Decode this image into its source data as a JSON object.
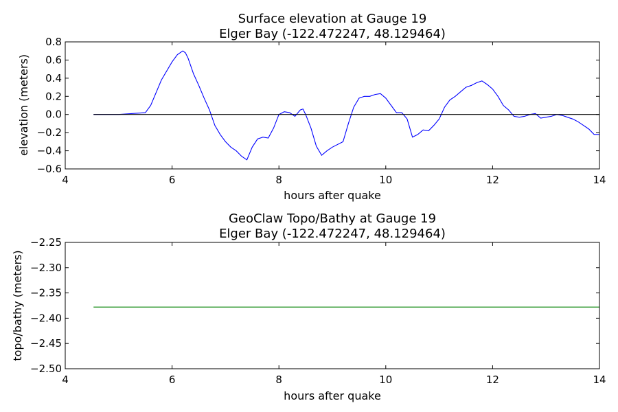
{
  "chart_data": [
    {
      "type": "line",
      "title": "Surface elevation at Gauge 19",
      "subtitle": "Elger Bay  (-122.472247, 48.129464)",
      "xlabel": "hours after quake",
      "ylabel": "elevation (meters)",
      "xlim": [
        4,
        14
      ],
      "ylim": [
        -0.6,
        0.8
      ],
      "xticks": [
        "4",
        "6",
        "8",
        "10",
        "12",
        "14"
      ],
      "yticks": [
        "−0.6",
        "−0.4",
        "−0.2",
        "0.0",
        "0.2",
        "0.4",
        "0.6",
        "0.8"
      ],
      "grid": false,
      "series": [
        {
          "color": "#0000ff",
          "x": [
            4.53,
            5.0,
            5.5,
            5.6,
            5.8,
            6.0,
            6.1,
            6.2,
            6.25,
            6.3,
            6.4,
            6.5,
            6.6,
            6.7,
            6.8,
            6.9,
            7.0,
            7.1,
            7.2,
            7.3,
            7.4,
            7.5,
            7.6,
            7.7,
            7.8,
            7.9,
            8.0,
            8.1,
            8.2,
            8.3,
            8.4,
            8.45,
            8.5,
            8.6,
            8.7,
            8.8,
            8.9,
            9.0,
            9.2,
            9.3,
            9.4,
            9.5,
            9.6,
            9.7,
            9.8,
            9.9,
            10.0,
            10.1,
            10.2,
            10.3,
            10.4,
            10.5,
            10.6,
            10.7,
            10.8,
            10.9,
            11.0,
            11.1,
            11.2,
            11.3,
            11.4,
            11.5,
            11.6,
            11.7,
            11.8,
            11.9,
            12.0,
            12.1,
            12.2,
            12.3,
            12.4,
            12.5,
            12.6,
            12.7,
            12.8,
            12.9,
            13.0,
            13.1,
            13.2,
            13.3,
            13.4,
            13.5,
            13.6,
            13.7,
            13.8,
            13.9,
            14.0
          ],
          "values": [
            0.0,
            0.0,
            0.02,
            0.1,
            0.38,
            0.58,
            0.66,
            0.7,
            0.68,
            0.62,
            0.45,
            0.32,
            0.18,
            0.05,
            -0.12,
            -0.22,
            -0.3,
            -0.36,
            -0.4,
            -0.46,
            -0.5,
            -0.36,
            -0.27,
            -0.25,
            -0.26,
            -0.15,
            0.0,
            0.03,
            0.02,
            -0.02,
            0.05,
            0.06,
            0.0,
            -0.15,
            -0.35,
            -0.45,
            -0.4,
            -0.36,
            -0.3,
            -0.1,
            0.08,
            0.18,
            0.2,
            0.2,
            0.22,
            0.23,
            0.18,
            0.1,
            0.02,
            0.02,
            -0.05,
            -0.25,
            -0.22,
            -0.17,
            -0.18,
            -0.12,
            -0.05,
            0.08,
            0.16,
            0.2,
            0.25,
            0.3,
            0.32,
            0.35,
            0.37,
            0.33,
            0.28,
            0.2,
            0.1,
            0.05,
            -0.02,
            -0.03,
            -0.02,
            0.0,
            0.01,
            -0.04,
            -0.03,
            -0.02,
            0.0,
            -0.01,
            -0.03,
            -0.05,
            -0.08,
            -0.12,
            -0.16,
            -0.22,
            -0.22
          ]
        },
        {
          "color": "#000000",
          "x": [
            4.53,
            14.0
          ],
          "values": [
            0.0,
            0.0
          ]
        }
      ]
    },
    {
      "type": "line",
      "title": "GeoClaw Topo/Bathy at Gauge 19",
      "subtitle": "Elger Bay  (-122.472247, 48.129464)",
      "xlabel": "hours after quake",
      "ylabel": "topo/bathy (meters)",
      "xlim": [
        4,
        14
      ],
      "ylim": [
        -2.5,
        -2.25
      ],
      "xticks": [
        "4",
        "6",
        "8",
        "10",
        "12",
        "14"
      ],
      "yticks": [
        "−2.50",
        "−2.45",
        "−2.40",
        "−2.35",
        "−2.30",
        "−2.25"
      ],
      "grid": false,
      "series": [
        {
          "color": "#008000",
          "x": [
            4.53,
            14.0
          ],
          "values": [
            -2.378,
            -2.378
          ]
        }
      ]
    }
  ]
}
